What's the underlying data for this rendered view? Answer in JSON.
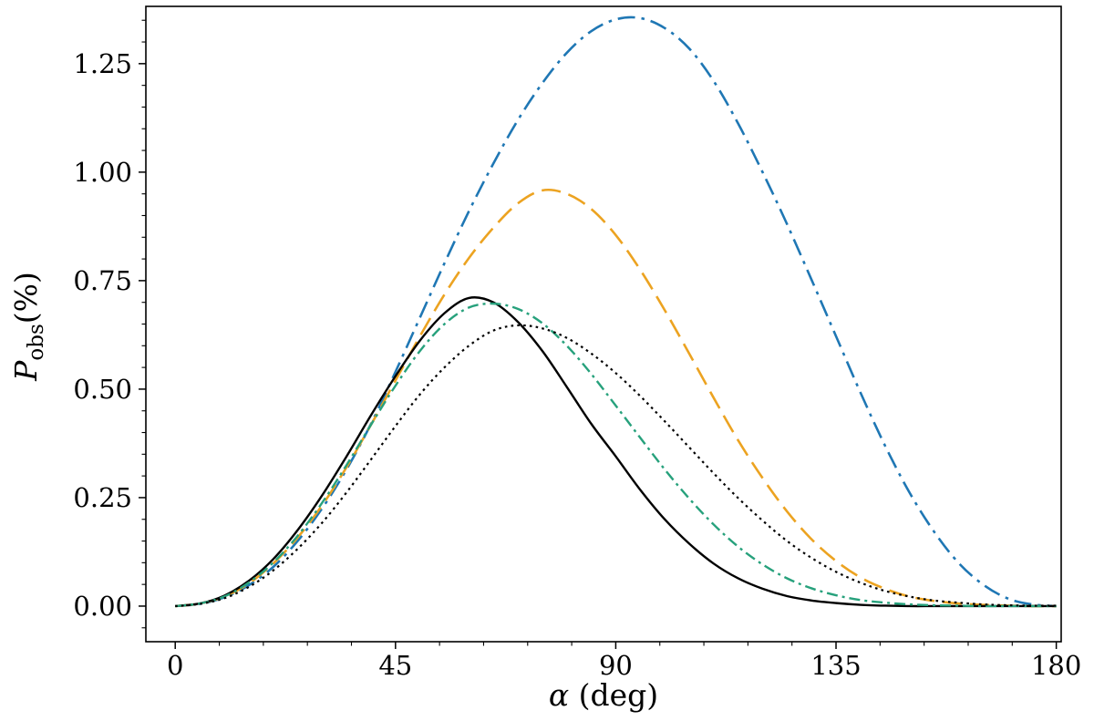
{
  "figure": {
    "background": "#ffffff",
    "frame_color": "#000000"
  },
  "chart_data": {
    "type": "line",
    "title": "",
    "xlabel_math": "α",
    "xlabel_rest": " (deg)",
    "ylabel_main": "P",
    "ylabel_sub": "obs",
    "ylabel_rest": "(%)",
    "xlim": [
      -6,
      181
    ],
    "ylim": [
      -0.082,
      1.382
    ],
    "xticks": [
      0,
      45,
      90,
      135,
      180
    ],
    "yticks": [
      0.0,
      0.25,
      0.5,
      0.75,
      1.0,
      1.25
    ],
    "x_minor_step": 9,
    "y_minor_step": 0.05,
    "grid": false,
    "legend": "none",
    "x": [
      0,
      5,
      10,
      15,
      20,
      25,
      30,
      35,
      40,
      45,
      50,
      55,
      60,
      65,
      70,
      75,
      80,
      85,
      90,
      95,
      100,
      105,
      110,
      115,
      120,
      125,
      130,
      135,
      140,
      145,
      150,
      155,
      160,
      165,
      170,
      175,
      180
    ],
    "series": [
      {
        "name": "blue-dash-dot",
        "linestyle": "dashdot",
        "color": "#1f77b4",
        "dash": "19 7 3.5 7",
        "width": 2.6,
        "values": [
          0.0,
          0.005,
          0.02,
          0.048,
          0.09,
          0.15,
          0.225,
          0.315,
          0.42,
          0.54,
          0.665,
          0.79,
          0.91,
          1.02,
          1.12,
          1.205,
          1.275,
          1.325,
          1.352,
          1.355,
          1.332,
          1.285,
          1.21,
          1.112,
          1.0,
          0.88,
          0.752,
          0.622,
          0.492,
          0.37,
          0.262,
          0.172,
          0.1,
          0.05,
          0.018,
          0.004,
          0.0
        ]
      },
      {
        "name": "orange-dashed",
        "linestyle": "dashed",
        "color": "#eca321",
        "dash": "21 9",
        "width": 2.6,
        "values": [
          0.0,
          0.006,
          0.022,
          0.052,
          0.098,
          0.158,
          0.232,
          0.32,
          0.418,
          0.52,
          0.622,
          0.718,
          0.802,
          0.872,
          0.928,
          0.958,
          0.95,
          0.915,
          0.855,
          0.775,
          0.682,
          0.582,
          0.48,
          0.382,
          0.295,
          0.218,
          0.154,
          0.104,
          0.066,
          0.04,
          0.022,
          0.012,
          0.006,
          0.003,
          0.001,
          0.0,
          0.0
        ]
      },
      {
        "name": "black-solid",
        "linestyle": "solid",
        "color": "#000000",
        "dash": "",
        "width": 2.4,
        "values": [
          0.0,
          0.006,
          0.024,
          0.058,
          0.108,
          0.175,
          0.255,
          0.345,
          0.44,
          0.53,
          0.612,
          0.675,
          0.71,
          0.7,
          0.655,
          0.588,
          0.505,
          0.42,
          0.345,
          0.268,
          0.2,
          0.144,
          0.098,
          0.064,
          0.04,
          0.023,
          0.013,
          0.007,
          0.003,
          0.001,
          0.0,
          0.0,
          0.0,
          0.0,
          0.0,
          0.0,
          0.0
        ]
      },
      {
        "name": "green-dash-dot",
        "linestyle": "dashdot",
        "color": "#27a17c",
        "dash": "12 5 3 5",
        "width": 2.4,
        "values": [
          0.0,
          0.006,
          0.022,
          0.054,
          0.1,
          0.162,
          0.238,
          0.325,
          0.418,
          0.508,
          0.588,
          0.65,
          0.688,
          0.697,
          0.685,
          0.652,
          0.6,
          0.535,
          0.462,
          0.388,
          0.315,
          0.248,
          0.188,
          0.137,
          0.096,
          0.064,
          0.041,
          0.025,
          0.014,
          0.008,
          0.004,
          0.002,
          0.001,
          0.0,
          0.0,
          0.0,
          0.0
        ]
      },
      {
        "name": "black-dotted",
        "linestyle": "dotted",
        "color": "#000000",
        "dash": "2.6 4.2",
        "width": 2.2,
        "values": [
          0.0,
          0.005,
          0.018,
          0.044,
          0.082,
          0.132,
          0.192,
          0.262,
          0.338,
          0.415,
          0.488,
          0.55,
          0.6,
          0.635,
          0.647,
          0.64,
          0.618,
          0.582,
          0.537,
          0.484,
          0.426,
          0.366,
          0.306,
          0.249,
          0.197,
          0.15,
          0.111,
          0.079,
          0.054,
          0.035,
          0.022,
          0.013,
          0.008,
          0.004,
          0.002,
          0.001,
          0.001
        ]
      }
    ]
  }
}
